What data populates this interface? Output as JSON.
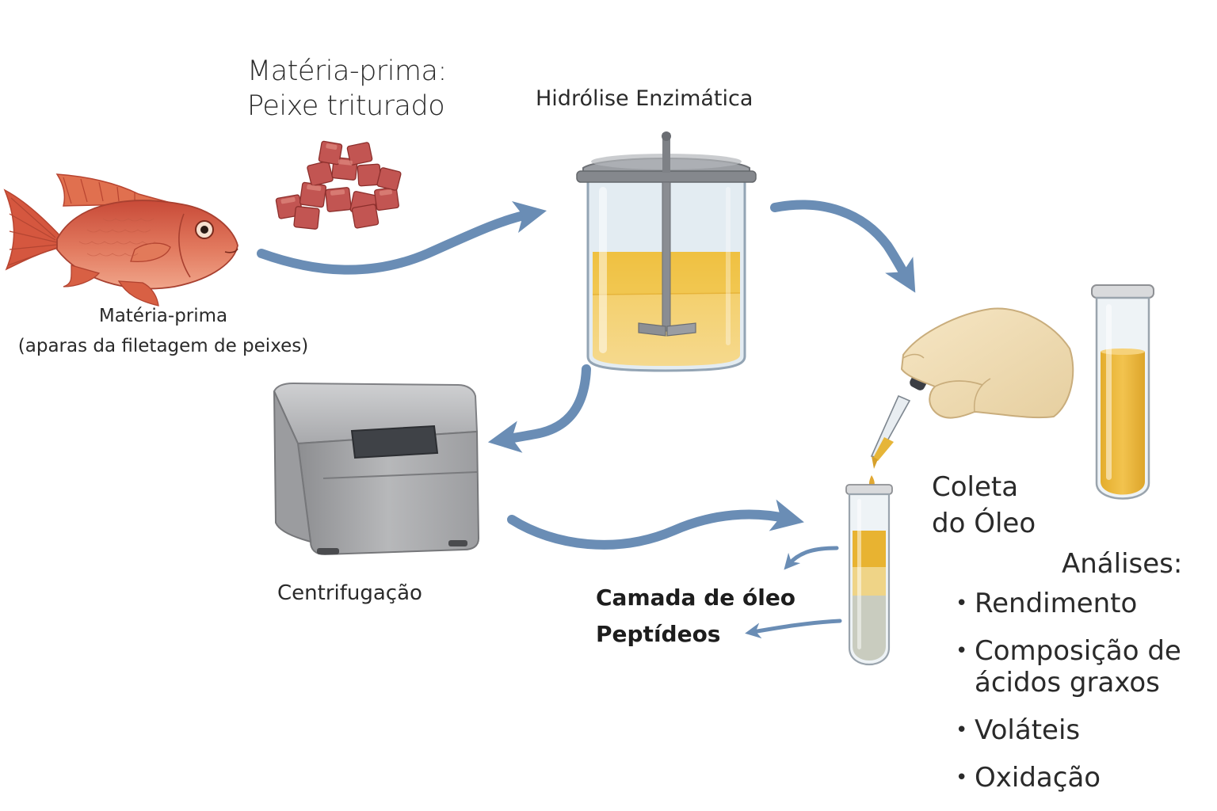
{
  "steps": {
    "raw_ground": {
      "line1": "Matéria-prima:",
      "line2": "Peixe triturado"
    },
    "raw_fish": {
      "line1": "Matéria-prima",
      "line2": "(aparas da filetagem de peixes)"
    },
    "hydrolysis": {
      "label": "Hidrólise Enzimática"
    },
    "centrifuge": {
      "label": "Centrifugação"
    },
    "collection": {
      "line1": "Coleta",
      "line2": "do Óleo"
    },
    "layers": {
      "oil": "Camada de óleo",
      "peptides": "Peptídeos"
    }
  },
  "analyses": {
    "title": "Análises:",
    "items": [
      "Rendimento",
      "Composição de\nácidos graxos",
      "Voláteis",
      "Oxidação"
    ]
  },
  "colors": {
    "arrow": "#6a8db5",
    "fish": "#d9644a",
    "oil": "#e9b73a",
    "peptide_layer": "#c9ccbf",
    "glove": "#f1ddb4",
    "centrifuge": "#a9a9ab"
  }
}
